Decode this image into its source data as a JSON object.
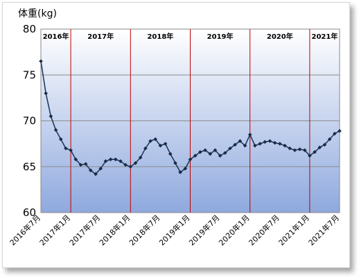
{
  "chart_data": {
    "type": "line",
    "ylabel": "体重(kg)",
    "ylim": [
      60,
      80
    ],
    "yticks": [
      60,
      65,
      70,
      75,
      80
    ],
    "x_range": [
      "2016-07",
      "2021-07"
    ],
    "x_tick_labels": [
      "2016年7月",
      "2017年1月",
      "2017年7月",
      "2018年1月",
      "2018年7月",
      "2019年1月",
      "2019年7月",
      "2020年1月",
      "2020年7月",
      "2021年1月",
      "2021年7月"
    ],
    "year_labels": [
      "2016年",
      "2017年",
      "2018年",
      "2019年",
      "2020年",
      "2021年"
    ],
    "year_boundaries": [
      "2017-01",
      "2018-01",
      "2019-01",
      "2020-01",
      "2021-01"
    ],
    "grid": true,
    "legend": "none",
    "colors": {
      "line": "#1f3a5f",
      "marker": "#1a2b44",
      "boundary": "#c00000",
      "plot_top": "#ffffff",
      "plot_bottom": "#8fa9de"
    },
    "series": [
      {
        "x": [
          "2016-07",
          "2016-08",
          "2016-09",
          "2016-10",
          "2016-11",
          "2016-12",
          "2017-01",
          "2017-02",
          "2017-03",
          "2017-04",
          "2017-05",
          "2017-06",
          "2017-07",
          "2017-08",
          "2017-09",
          "2017-10",
          "2017-11",
          "2017-12",
          "2018-01",
          "2018-02",
          "2018-03",
          "2018-04",
          "2018-05",
          "2018-06",
          "2018-07",
          "2018-08",
          "2018-09",
          "2018-10",
          "2018-11",
          "2018-12",
          "2019-01",
          "2019-02",
          "2019-03",
          "2019-04",
          "2019-05",
          "2019-06",
          "2019-07",
          "2019-08",
          "2019-09",
          "2019-10",
          "2019-11",
          "2019-12",
          "2020-01",
          "2020-02",
          "2020-03",
          "2020-04",
          "2020-05",
          "2020-06",
          "2020-07",
          "2020-08",
          "2020-09",
          "2020-10",
          "2020-11",
          "2020-12",
          "2021-01",
          "2021-02",
          "2021-03",
          "2021-04",
          "2021-05",
          "2021-06",
          "2021-07"
        ],
        "y": [
          76.5,
          73.0,
          70.5,
          69.0,
          68.0,
          67.0,
          66.8,
          65.8,
          65.2,
          65.3,
          64.6,
          64.2,
          64.8,
          65.6,
          65.8,
          65.8,
          65.6,
          65.2,
          65.0,
          65.4,
          66.0,
          67.0,
          67.8,
          68.0,
          67.3,
          67.5,
          66.4,
          65.4,
          64.4,
          64.8,
          65.8,
          66.2,
          66.6,
          66.8,
          66.4,
          66.8,
          66.2,
          66.5,
          67.0,
          67.4,
          67.8,
          67.3,
          68.5,
          67.3,
          67.5,
          67.7,
          67.8,
          67.6,
          67.5,
          67.3,
          67.0,
          66.8,
          66.9,
          66.8,
          66.2,
          66.6,
          67.1,
          67.4,
          68.0,
          68.6,
          68.9
        ]
      }
    ]
  }
}
